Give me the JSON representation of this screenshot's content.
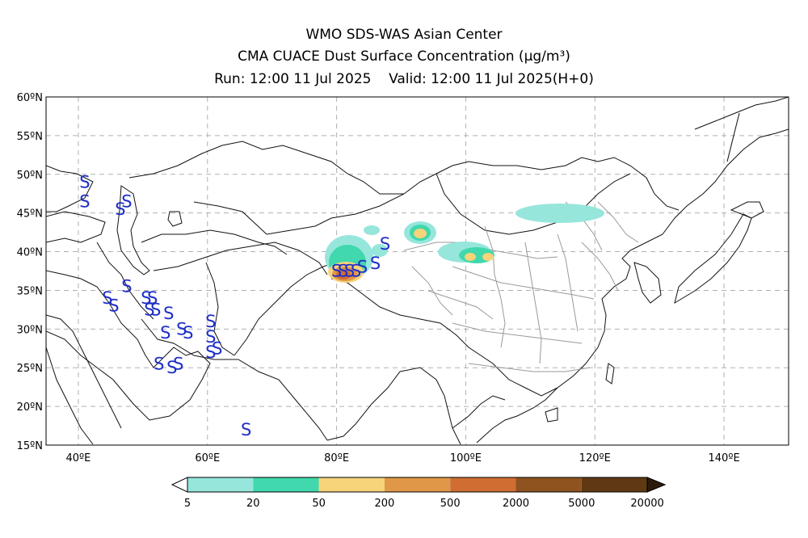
{
  "header": {
    "line1": "WMO SDS-WAS Asian Center",
    "line2": "CMA CUACE Dust Surface Concentration (μg/m³)",
    "line3": "Run: 12:00 11 Jul 2025    Valid: 12:00 11 Jul 2025(H+0)"
  },
  "map": {
    "lon_range": [
      35,
      150
    ],
    "lat_range": [
      15,
      60
    ],
    "lat_ticks": [
      "15ºN",
      "20ºN",
      "25ºN",
      "30ºN",
      "35ºN",
      "40ºN",
      "45ºN",
      "50ºN",
      "55ºN",
      "60ºN"
    ],
    "lon_ticks": [
      "40ºE",
      "60ºE",
      "80ºE",
      "100ºE",
      "120ºE",
      "140ºE"
    ],
    "grid": true,
    "sandstorm_symbol": "S",
    "sandstorm_points": [
      [
        41,
        49
      ],
      [
        41,
        46.5
      ],
      [
        46.5,
        45.5
      ],
      [
        47.5,
        46.5
      ],
      [
        44.5,
        34
      ],
      [
        47.5,
        35.5
      ],
      [
        45.5,
        33
      ],
      [
        50.5,
        34
      ],
      [
        51.5,
        34
      ],
      [
        51,
        32.5
      ],
      [
        52,
        32.5
      ],
      [
        54,
        32
      ],
      [
        53.5,
        29.5
      ],
      [
        56,
        30
      ],
      [
        57,
        29.5
      ],
      [
        60.5,
        31
      ],
      [
        60.5,
        29
      ],
      [
        60.5,
        27
      ],
      [
        61.5,
        27.5
      ],
      [
        52.5,
        25.5
      ],
      [
        54.5,
        25
      ],
      [
        55.5,
        25.5
      ],
      [
        66,
        17
      ],
      [
        80,
        37.5
      ],
      [
        81,
        37.5
      ],
      [
        82,
        37.5
      ],
      [
        83,
        37.5
      ],
      [
        84,
        38
      ],
      [
        86,
        38.5
      ],
      [
        87.5,
        41
      ]
    ]
  },
  "legend": {
    "labels": [
      "5",
      "20",
      "50",
      "200",
      "500",
      "2000",
      "5000",
      "20000"
    ],
    "colors": [
      "#96e6dc",
      "#40d8ac",
      "#f7d37a",
      "#e09848",
      "#cf6d32",
      "#8f5320",
      "#5f3914",
      "#2c1b0c"
    ]
  }
}
